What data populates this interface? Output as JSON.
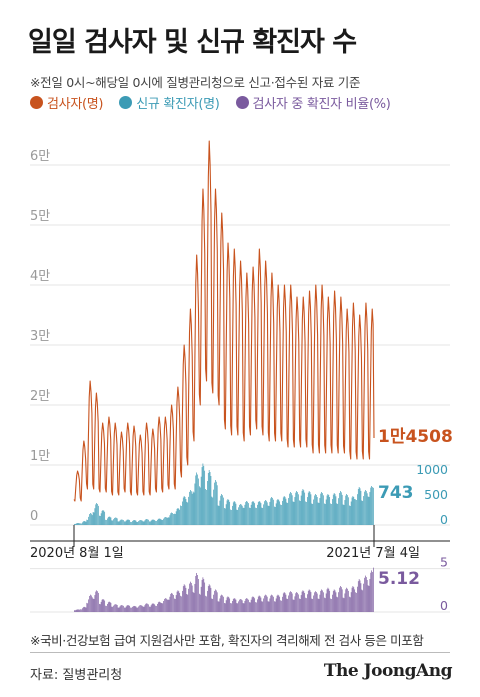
{
  "title": "일일 검사자 및 신규 확진자 수",
  "note": "※전일 0시~해당일 0시에 질병관리청으로 신고·접수된 자료 기준",
  "legend": {
    "tests": "검사자(명)",
    "cases": "신규 확진자(명)",
    "ratio": "검사자 중 확진자 비율(%)"
  },
  "colors": {
    "tests": "#c8531e",
    "cases": "#3c9bb5",
    "ratio": "#7a5a9e"
  },
  "footnote": "※국비·건강보험 급여 지원검사만 포함, 확진자의 격리해제 전 검사 등은 미포함",
  "source": "자료: 질병관리청",
  "brand": "The JoongAng",
  "chart_data": {
    "type": "line",
    "x_start_label": "2020년 8월 1일",
    "x_end_label": "2021년 7월 4일",
    "tests": {
      "ylim": [
        0,
        65000
      ],
      "y_ticks": [
        {
          "value": 0,
          "label": "0"
        },
        {
          "value": 10000,
          "label": "1만"
        },
        {
          "value": 20000,
          "label": "2만"
        },
        {
          "value": 30000,
          "label": "3만"
        },
        {
          "value": 40000,
          "label": "4만"
        },
        {
          "value": 50000,
          "label": "5만"
        },
        {
          "value": 60000,
          "label": "6만"
        }
      ],
      "weekly_peak_trough": [
        [
          9000,
          4000
        ],
        [
          14000,
          4000
        ],
        [
          24000,
          6000
        ],
        [
          22000,
          6000
        ],
        [
          17000,
          5500
        ],
        [
          18000,
          5500
        ],
        [
          17000,
          5000
        ],
        [
          15500,
          5000
        ],
        [
          17000,
          5500
        ],
        [
          16500,
          5000
        ],
        [
          15000,
          5000
        ],
        [
          17000,
          5000
        ],
        [
          16000,
          5000
        ],
        [
          18000,
          5500
        ],
        [
          18000,
          5500
        ],
        [
          20000,
          6000
        ],
        [
          23000,
          6000
        ],
        [
          30000,
          8000
        ],
        [
          36000,
          10000
        ],
        [
          45000,
          14000
        ],
        [
          56000,
          20000
        ],
        [
          64000,
          24000
        ],
        [
          56000,
          22000
        ],
        [
          52000,
          20000
        ],
        [
          47000,
          16000
        ],
        [
          46000,
          15000
        ],
        [
          44000,
          15000
        ],
        [
          42000,
          14000
        ],
        [
          43000,
          15000
        ],
        [
          46000,
          16000
        ],
        [
          44000,
          15000
        ],
        [
          42000,
          14000
        ],
        [
          40000,
          14000
        ],
        [
          40000,
          14000
        ],
        [
          40000,
          13000
        ],
        [
          38000,
          13000
        ],
        [
          38000,
          13000
        ],
        [
          39000,
          13000
        ],
        [
          40000,
          12000
        ],
        [
          40000,
          12000
        ],
        [
          38000,
          12000
        ],
        [
          39000,
          12000
        ],
        [
          38000,
          12000
        ],
        [
          36000,
          12000
        ],
        [
          37000,
          11000
        ],
        [
          35000,
          11000
        ],
        [
          37000,
          11000
        ],
        [
          36000,
          11000
        ]
      ],
      "last_value": 14508,
      "last_label": "1만4508"
    },
    "cases": {
      "ylim": [
        0,
        1300
      ],
      "y_ticks": [
        {
          "value": 0,
          "label": "0"
        },
        {
          "value": 500,
          "label": "500"
        },
        {
          "value": 1000,
          "label": "1000"
        }
      ],
      "weekly_peak_trough": [
        [
          40,
          20
        ],
        [
          80,
          30
        ],
        [
          240,
          100
        ],
        [
          440,
          250
        ],
        [
          300,
          180
        ],
        [
          170,
          100
        ],
        [
          150,
          90
        ],
        [
          110,
          70
        ],
        [
          110,
          70
        ],
        [
          100,
          60
        ],
        [
          100,
          60
        ],
        [
          120,
          70
        ],
        [
          110,
          70
        ],
        [
          130,
          80
        ],
        [
          160,
          100
        ],
        [
          250,
          150
        ],
        [
          340,
          220
        ],
        [
          580,
          380
        ],
        [
          700,
          450
        ],
        [
          1050,
          650
        ],
        [
          1230,
          750
        ],
        [
          1100,
          700
        ],
        [
          900,
          550
        ],
        [
          620,
          380
        ],
        [
          520,
          330
        ],
        [
          480,
          300
        ],
        [
          420,
          300
        ],
        [
          480,
          340
        ],
        [
          480,
          340
        ],
        [
          480,
          340
        ],
        [
          500,
          340
        ],
        [
          560,
          380
        ],
        [
          520,
          360
        ],
        [
          580,
          400
        ],
        [
          660,
          440
        ],
        [
          680,
          460
        ],
        [
          720,
          480
        ],
        [
          680,
          460
        ],
        [
          620,
          420
        ],
        [
          660,
          440
        ],
        [
          620,
          420
        ],
        [
          640,
          420
        ],
        [
          680,
          420
        ],
        [
          620,
          400
        ],
        [
          580,
          380
        ],
        [
          760,
          500
        ],
        [
          700,
          480
        ],
        [
          780,
          560
        ]
      ],
      "last_value": 743,
      "last_label": "743"
    },
    "ratio": {
      "ylim": [
        0,
        6
      ],
      "y_ticks": [
        {
          "value": 0,
          "label": "0"
        },
        {
          "value": 5,
          "label": "5"
        }
      ],
      "weekly_peak_trough": [
        [
          0.3,
          0.2
        ],
        [
          0.6,
          0.3
        ],
        [
          2.0,
          1.0
        ],
        [
          2.5,
          1.5
        ],
        [
          1.5,
          0.9
        ],
        [
          1.2,
          0.7
        ],
        [
          0.9,
          0.6
        ],
        [
          0.8,
          0.5
        ],
        [
          0.8,
          0.5
        ],
        [
          0.7,
          0.5
        ],
        [
          0.8,
          0.5
        ],
        [
          1.0,
          0.6
        ],
        [
          1.0,
          0.6
        ],
        [
          1.2,
          0.7
        ],
        [
          1.6,
          1.0
        ],
        [
          2.2,
          1.4
        ],
        [
          2.5,
          1.5
        ],
        [
          3.2,
          1.8
        ],
        [
          3.5,
          2.0
        ],
        [
          4.5,
          2.2
        ],
        [
          4.0,
          2.0
        ],
        [
          3.2,
          1.8
        ],
        [
          2.6,
          1.5
        ],
        [
          2.0,
          1.2
        ],
        [
          1.8,
          1.0
        ],
        [
          1.6,
          1.0
        ],
        [
          1.5,
          1.0
        ],
        [
          1.6,
          1.0
        ],
        [
          1.8,
          1.1
        ],
        [
          1.9,
          1.1
        ],
        [
          2.0,
          1.2
        ],
        [
          2.0,
          1.2
        ],
        [
          2.0,
          1.2
        ],
        [
          2.3,
          1.3
        ],
        [
          2.4,
          1.5
        ],
        [
          2.3,
          1.4
        ],
        [
          2.5,
          1.5
        ],
        [
          2.6,
          1.6
        ],
        [
          2.4,
          1.5
        ],
        [
          2.6,
          1.5
        ],
        [
          2.8,
          1.6
        ],
        [
          2.6,
          1.5
        ],
        [
          3.0,
          1.7
        ],
        [
          2.8,
          1.6
        ],
        [
          3.0,
          1.7
        ],
        [
          3.8,
          2.2
        ],
        [
          4.2,
          2.5
        ],
        [
          4.8,
          3.0
        ]
      ],
      "last_value": 5.12,
      "last_label": "5.12"
    }
  }
}
